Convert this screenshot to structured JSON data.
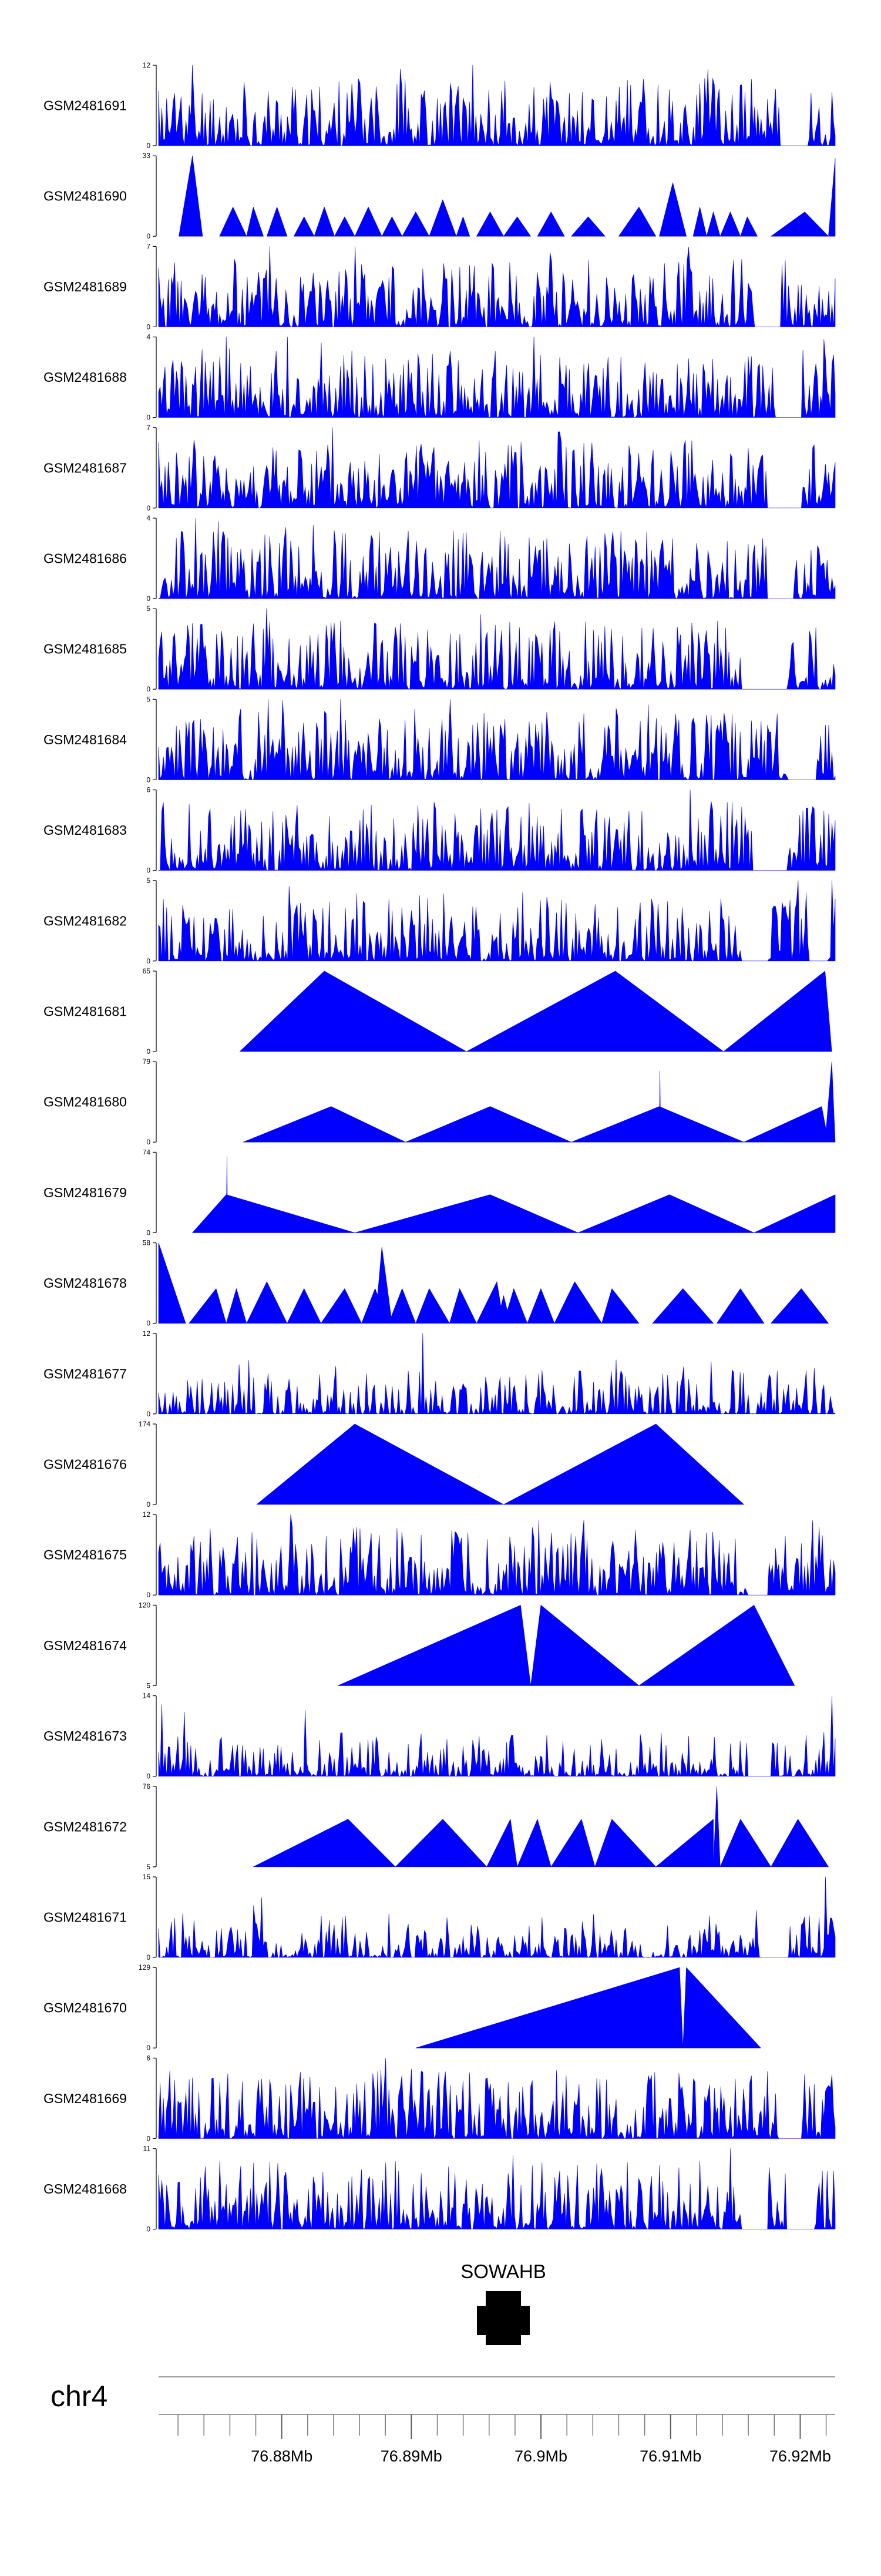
{
  "chart_data": {
    "type": "area",
    "chromosome": "chr4",
    "x_range_mb": [
      76.8705,
      76.9227
    ],
    "gene": {
      "name": "SOWAHB",
      "start_mb": 76.8962,
      "end_mb": 76.898
    },
    "genome_ticks": [
      "76.88Mb",
      "76.89Mb",
      "76.9Mb",
      "76.91Mb",
      "76.92Mb"
    ],
    "genome_tick_values": [
      76.88,
      76.89,
      76.9,
      76.91,
      76.92
    ],
    "tracks": [
      {
        "name": "GSM2481691",
        "ymax_label": "12",
        "ymax": 12,
        "ymin_label": "0",
        "style": "noisy",
        "seed": 11,
        "spike_at": 0.05,
        "spike_value": 12,
        "flat_gaps": [
          [
            0.92,
            0.96
          ]
        ]
      },
      {
        "name": "GSM2481690",
        "ymax_label": "33",
        "ymax": 33,
        "ymin_label": "0",
        "style": "peaks",
        "peaks": [
          [
            0.03,
            0.05,
            0.065,
            33
          ],
          [
            0.09,
            0.11,
            0.13,
            12
          ],
          [
            0.13,
            0.14,
            0.155,
            12
          ],
          [
            0.16,
            0.175,
            0.19,
            12
          ],
          [
            0.2,
            0.215,
            0.23,
            8
          ],
          [
            0.23,
            0.245,
            0.26,
            12
          ],
          [
            0.26,
            0.275,
            0.29,
            8
          ],
          [
            0.29,
            0.31,
            0.33,
            12
          ],
          [
            0.33,
            0.345,
            0.36,
            8
          ],
          [
            0.36,
            0.38,
            0.4,
            10
          ],
          [
            0.4,
            0.42,
            0.44,
            15
          ],
          [
            0.44,
            0.45,
            0.46,
            8
          ],
          [
            0.47,
            0.49,
            0.51,
            10
          ],
          [
            0.51,
            0.53,
            0.55,
            8
          ],
          [
            0.56,
            0.58,
            0.6,
            10
          ],
          [
            0.61,
            0.635,
            0.66,
            8
          ],
          [
            0.68,
            0.71,
            0.735,
            12
          ],
          [
            0.74,
            0.76,
            0.78,
            22
          ],
          [
            0.79,
            0.8,
            0.81,
            12
          ],
          [
            0.81,
            0.82,
            0.83,
            10
          ],
          [
            0.83,
            0.845,
            0.86,
            10
          ],
          [
            0.86,
            0.87,
            0.885,
            8
          ],
          [
            0.905,
            0.955,
            0.99,
            10
          ],
          [
            0.99,
            1.0,
            1.0,
            32
          ]
        ]
      },
      {
        "name": "GSM2481689",
        "ymax_label": "7",
        "ymax": 7,
        "ymin_label": "0",
        "style": "noisy",
        "seed": 23,
        "spike_at": 0.165,
        "spike_value": 7,
        "flat_gaps": [
          [
            0.88,
            0.92
          ]
        ]
      },
      {
        "name": "GSM2481688",
        "ymax_label": "4",
        "ymax": 4,
        "ymin_label": "0",
        "style": "noisy",
        "seed": 37,
        "spike_at": 0.19,
        "spike_value": 4,
        "flat_gaps": [
          [
            0.91,
            0.95
          ]
        ]
      },
      {
        "name": "GSM2481687",
        "ymax_label": "7",
        "ymax": 7,
        "ymin_label": "0",
        "style": "noisy",
        "seed": 41,
        "spike_at": 0.258,
        "spike_value": 7,
        "flat_gaps": [
          [
            0.9,
            0.95
          ]
        ]
      },
      {
        "name": "GSM2481686",
        "ymax_label": "4",
        "ymax": 4,
        "ymin_label": "0",
        "style": "noisy",
        "seed": 53,
        "spike_at": 0.055,
        "spike_value": 4,
        "flat_gaps": [
          [
            0.9,
            0.94
          ]
        ]
      },
      {
        "name": "GSM2481685",
        "ymax_label": "5",
        "ymax": 5,
        "ymin_label": "0",
        "style": "noisy",
        "seed": 61,
        "spike_at": 0.16,
        "spike_value": 5,
        "flat_gaps": [
          [
            0.86,
            0.93
          ]
        ]
      },
      {
        "name": "GSM2481684",
        "ymax_label": "5",
        "ymax": 5,
        "ymin_label": "0",
        "style": "noisy",
        "seed": 67,
        "spike_at": 0.27,
        "spike_value": 5,
        "flat_gaps": [
          [
            0.93,
            0.97
          ]
        ]
      },
      {
        "name": "GSM2481683",
        "ymax_label": "6",
        "ymax": 6,
        "ymin_label": "0",
        "style": "noisy",
        "seed": 71,
        "spike_at": 0.785,
        "spike_value": 6,
        "flat_gaps": [
          [
            0.88,
            0.93
          ]
        ]
      },
      {
        "name": "GSM2481682",
        "ymax_label": "5",
        "ymax": 5,
        "ymin_label": "0",
        "style": "noisy",
        "seed": 79,
        "spike_at": 0.945,
        "spike_value": 5,
        "flat_gaps": [
          [
            0.86,
            0.9
          ],
          [
            0.96,
            0.99
          ]
        ]
      },
      {
        "name": "GSM2481681",
        "ymax_label": "65",
        "ymax": 65,
        "ymin_label": "0",
        "style": "peaks",
        "peaks": [
          [
            0.12,
            0.245,
            0.455,
            65
          ],
          [
            0.455,
            0.675,
            0.835,
            65
          ],
          [
            0.835,
            0.985,
            0.995,
            65
          ]
        ]
      },
      {
        "name": "GSM2481680",
        "ymax_label": "79",
        "ymax": 79,
        "ymin_label": "0",
        "style": "peaks",
        "peaks": [
          [
            0.125,
            0.255,
            0.365,
            35
          ],
          [
            0.365,
            0.49,
            0.61,
            35
          ],
          [
            0.61,
            0.74,
            0.865,
            35
          ],
          [
            0.865,
            0.98,
            0.99,
            35
          ],
          [
            0.985,
            0.995,
            1.0,
            79
          ],
          [
            0.74,
            0.741,
            0.742,
            70
          ]
        ]
      },
      {
        "name": "GSM2481679",
        "ymax_label": "74",
        "ymax": 74,
        "ymin_label": "0",
        "style": "peaks",
        "peaks": [
          [
            0.05,
            0.1,
            0.29,
            35
          ],
          [
            0.1,
            0.101,
            0.102,
            70
          ],
          [
            0.29,
            0.49,
            0.62,
            35
          ],
          [
            0.62,
            0.755,
            0.88,
            35
          ],
          [
            0.755,
            0.756,
            0.757,
            1
          ],
          [
            0.88,
            1.0,
            1.0,
            35
          ]
        ]
      },
      {
        "name": "GSM2481678",
        "ymax_label": "58",
        "ymax": 58,
        "ymin_label": "0",
        "style": "peaks",
        "peaks": [
          [
            0.0,
            0.0,
            0.04,
            58
          ],
          [
            0.045,
            0.085,
            0.1,
            25
          ],
          [
            0.1,
            0.115,
            0.13,
            25
          ],
          [
            0.13,
            0.16,
            0.19,
            30
          ],
          [
            0.19,
            0.215,
            0.24,
            25
          ],
          [
            0.24,
            0.275,
            0.3,
            25
          ],
          [
            0.3,
            0.32,
            0.34,
            25
          ],
          [
            0.32,
            0.33,
            0.345,
            55
          ],
          [
            0.34,
            0.36,
            0.38,
            25
          ],
          [
            0.38,
            0.4,
            0.43,
            25
          ],
          [
            0.43,
            0.445,
            0.47,
            25
          ],
          [
            0.47,
            0.5,
            0.51,
            30
          ],
          [
            0.5,
            0.51,
            0.52,
            20
          ],
          [
            0.51,
            0.525,
            0.545,
            25
          ],
          [
            0.545,
            0.565,
            0.585,
            25
          ],
          [
            0.585,
            0.615,
            0.655,
            30
          ],
          [
            0.655,
            0.67,
            0.71,
            25
          ],
          [
            0.73,
            0.775,
            0.82,
            25
          ],
          [
            0.825,
            0.86,
            0.895,
            25
          ],
          [
            0.905,
            0.95,
            0.99,
            25
          ]
        ]
      },
      {
        "name": "GSM2481677",
        "ymax_label": "12",
        "ymax": 12,
        "ymin_label": "0",
        "style": "noisy",
        "seed": 97,
        "spike_at": 0.39,
        "spike_value": 12,
        "flat_gaps": [],
        "low": true
      },
      {
        "name": "GSM2481676",
        "ymax_label": "174",
        "ymax": 174,
        "ymin_label": "0",
        "style": "peaks",
        "peaks": [
          [
            0.145,
            0.29,
            0.51,
            174
          ],
          [
            0.51,
            0.735,
            0.865,
            174
          ]
        ]
      },
      {
        "name": "GSM2481675",
        "ymax_label": "12",
        "ymax": 12,
        "ymin_label": "0",
        "style": "noisy",
        "seed": 103,
        "spike_at": 0.195,
        "spike_value": 12,
        "flat_gaps": [
          [
            0.87,
            0.9
          ]
        ]
      },
      {
        "name": "GSM2481674",
        "ymax_label": "120",
        "ymax": 120,
        "ymin_label": "5",
        "style": "peaks",
        "peaks": [
          [
            0.265,
            0.535,
            0.55,
            120
          ],
          [
            0.55,
            0.565,
            0.71,
            120
          ],
          [
            0.71,
            0.88,
            0.94,
            120
          ]
        ]
      },
      {
        "name": "GSM2481673",
        "ymax_label": "14",
        "ymax": 14,
        "ymin_label": "0",
        "style": "noisy",
        "seed": 109,
        "spike_at": 0.995,
        "spike_value": 14,
        "flat_gaps": [
          [
            0.87,
            0.9
          ]
        ],
        "low": true
      },
      {
        "name": "GSM2481672",
        "ymax_label": "76",
        "ymax": 76,
        "ymin_label": "5",
        "style": "peaks",
        "peaks": [
          [
            0.14,
            0.28,
            0.35,
            45
          ],
          [
            0.35,
            0.42,
            0.485,
            45
          ],
          [
            0.485,
            0.52,
            0.53,
            45
          ],
          [
            0.53,
            0.56,
            0.58,
            45
          ],
          [
            0.58,
            0.625,
            0.645,
            45
          ],
          [
            0.645,
            0.67,
            0.735,
            45
          ],
          [
            0.735,
            0.82,
            0.82,
            45
          ],
          [
            0.82,
            0.825,
            0.83,
            76
          ],
          [
            0.83,
            0.86,
            0.905,
            45
          ],
          [
            0.905,
            0.945,
            0.99,
            45
          ]
        ]
      },
      {
        "name": "GSM2481671",
        "ymax_label": "15",
        "ymax": 15,
        "ymin_label": "0",
        "style": "noisy",
        "seed": 127,
        "spike_at": 0.985,
        "spike_value": 15,
        "flat_gaps": [
          [
            0.89,
            0.93
          ]
        ],
        "low": true
      },
      {
        "name": "GSM2481670",
        "ymax_label": "129",
        "ymax": 129,
        "ymin_label": "0",
        "style": "peaks",
        "peaks": [
          [
            0.38,
            0.77,
            0.775,
            129
          ],
          [
            0.775,
            0.78,
            0.89,
            129
          ]
        ]
      },
      {
        "name": "GSM2481669",
        "ymax_label": "6",
        "ymax": 6,
        "ymin_label": "0",
        "style": "noisy",
        "seed": 131,
        "spike_at": 0.335,
        "spike_value": 6,
        "flat_gaps": [
          [
            0.915,
            0.95
          ]
        ]
      },
      {
        "name": "GSM2481668",
        "ymax_label": "11",
        "ymax": 11,
        "ymin_label": "0",
        "style": "noisy",
        "seed": 139,
        "spike_at": 0.845,
        "spike_value": 11,
        "flat_gaps": [
          [
            0.86,
            0.9
          ],
          [
            0.93,
            0.97
          ]
        ]
      }
    ],
    "colors": {
      "signal": "#0000ff",
      "axis": "#000000",
      "gene": "#000000",
      "genome_axis": "#999999"
    }
  }
}
